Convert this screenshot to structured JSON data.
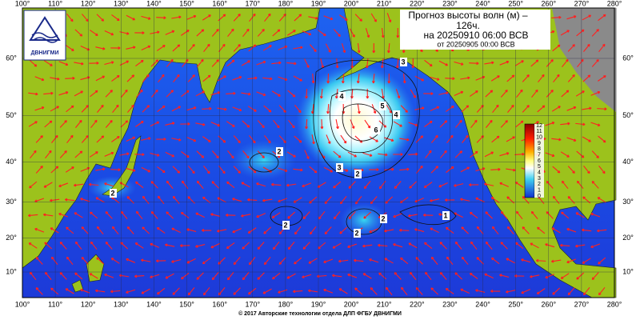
{
  "map": {
    "title": [
      "Прогноз высоты волн (м) –",
      "126ч.",
      "на 20250910 06:00 ВСВ"
    ],
    "issued": "от 20250905 00:00 ВСВ",
    "logo": "ДВНИГМИ",
    "copyright": "© 2017 Авторские технологии отдела ДЛП ФГБУ ДВНИГМИ",
    "lon_ticks": [
      {
        "value": 100,
        "label": "100°"
      },
      {
        "value": 110,
        "label": "110°"
      },
      {
        "value": 120,
        "label": "120°"
      },
      {
        "value": 130,
        "label": "130°"
      },
      {
        "value": 140,
        "label": "140°"
      },
      {
        "value": 150,
        "label": "150°"
      },
      {
        "value": 160,
        "label": "160°"
      },
      {
        "value": 170,
        "label": "170°"
      },
      {
        "value": 180,
        "label": "180°"
      },
      {
        "value": 190,
        "label": "190°"
      },
      {
        "value": 200,
        "label": "200°"
      },
      {
        "value": 210,
        "label": "210°"
      },
      {
        "value": 220,
        "label": "220°"
      },
      {
        "value": 230,
        "label": "230°"
      },
      {
        "value": 240,
        "label": "240°"
      },
      {
        "value": 250,
        "label": "250°"
      },
      {
        "value": 260,
        "label": "260°"
      },
      {
        "value": 270,
        "label": "270°"
      },
      {
        "value": 280,
        "label": "280°"
      }
    ],
    "lat_ticks": [
      {
        "value": 10,
        "label": "10°"
      },
      {
        "value": 20,
        "label": "20°"
      },
      {
        "value": 30,
        "label": "30°"
      },
      {
        "value": 40,
        "label": "40°"
      },
      {
        "value": 50,
        "label": "50°"
      },
      {
        "value": 60,
        "label": "60°"
      }
    ],
    "colorbar_ticks": [
      12,
      11,
      10,
      9,
      8,
      7,
      6,
      5,
      4,
      3,
      2,
      1,
      0
    ],
    "contour_labels": [
      6,
      5,
      4,
      4,
      3,
      3,
      2,
      2,
      2,
      2,
      2,
      1,
      2
    ]
  }
}
